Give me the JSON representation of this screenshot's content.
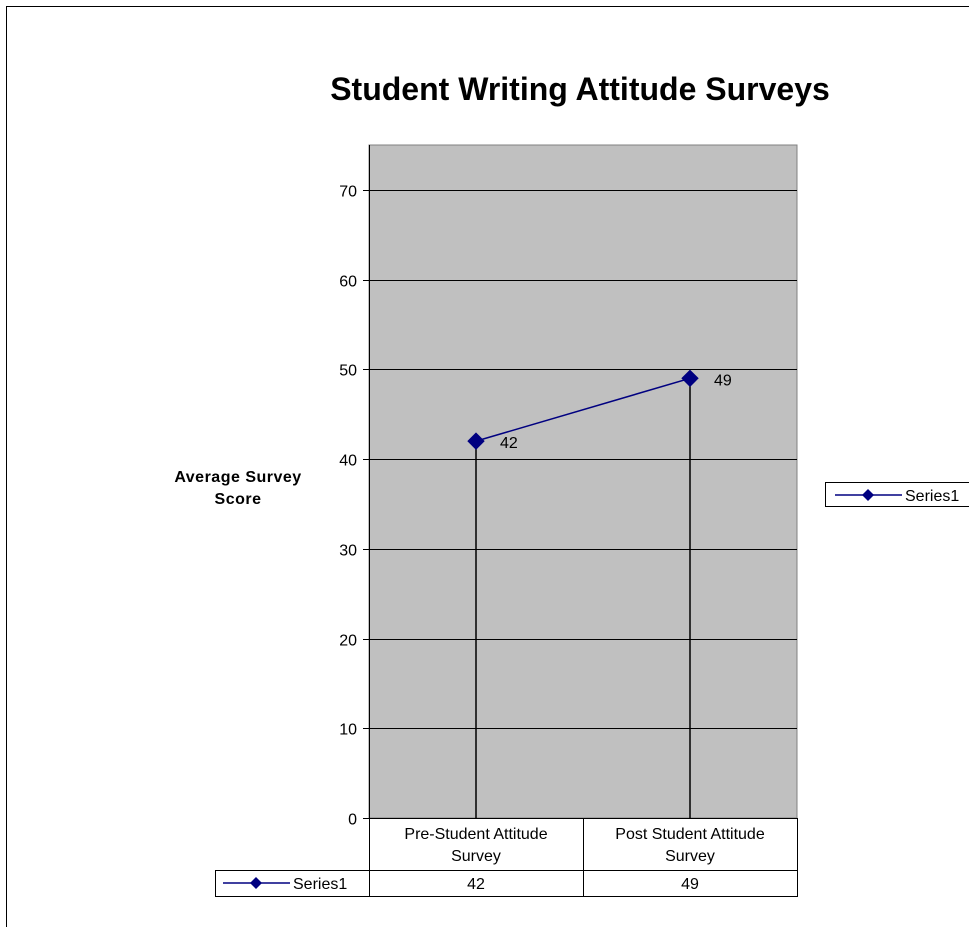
{
  "chart_data": {
    "type": "line",
    "title": "Student Writing Attitude Surveys",
    "ylabel": "Average Survey Score",
    "xlabel": "",
    "categories": [
      "Pre-Student Attitude Survey",
      "Post Student Attitude Survey"
    ],
    "category_lines": [
      [
        "Pre-Student Attitude",
        "Survey"
      ],
      [
        "Post Student Attitude",
        "Survey"
      ]
    ],
    "series": [
      {
        "name": "Series1",
        "values": [
          42,
          49
        ],
        "color": "#000080"
      }
    ],
    "ylim": [
      0,
      75
    ],
    "yticks": [
      0,
      10,
      20,
      30,
      40,
      50,
      60,
      70
    ],
    "grid": true,
    "plot_background": "#C0C0C0",
    "drop_lines": true,
    "data_labels": true,
    "legend": "right",
    "data_table": true
  }
}
